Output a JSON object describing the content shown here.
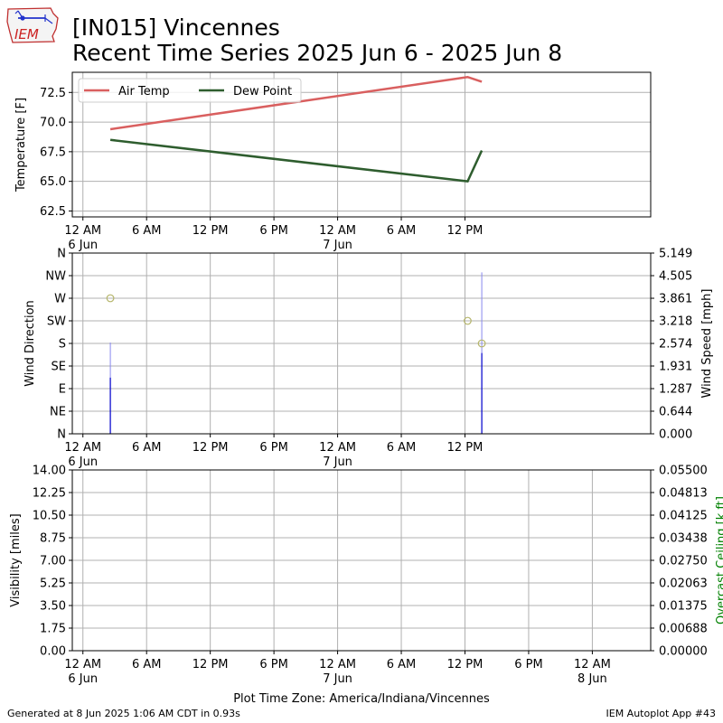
{
  "header": {
    "title_line1": "[IN015] Vincennes",
    "title_line2": "Recent Time Series 2025 Jun 6 - 2025 Jun 8"
  },
  "logo": {
    "text": "IEM"
  },
  "footer": {
    "generated": "Generated at 8 Jun 2025 1:06 AM CDT in 0.93s",
    "app": "IEM Autoplot App #43"
  },
  "colors": {
    "air_temp": "#d95f5f",
    "dew_point": "#2e5d2e",
    "wind_dir": "#b5b56a",
    "wind_speed": "#0000cc",
    "ceiling_axis": "#008000",
    "grid": "#b0b0b0"
  },
  "chart_data": [
    {
      "type": "line",
      "ylabel": "Temperature [F]",
      "ylim": [
        62,
        74.2
      ],
      "yticks": [
        "62.5",
        "65.0",
        "67.5",
        "70.0",
        "72.5"
      ],
      "ytick_values": [
        62.5,
        65.0,
        67.5,
        70.0,
        72.5
      ],
      "xlim_hours": [
        -1,
        53.5
      ],
      "xticks": [
        {
          "h": 0,
          "label": "12 AM",
          "sub": "6 Jun"
        },
        {
          "h": 6,
          "label": "6 AM",
          "sub": ""
        },
        {
          "h": 12,
          "label": "12 PM",
          "sub": ""
        },
        {
          "h": 18,
          "label": "6 PM",
          "sub": ""
        },
        {
          "h": 24,
          "label": "12 AM",
          "sub": "7 Jun"
        },
        {
          "h": 30,
          "label": "6 AM",
          "sub": ""
        },
        {
          "h": 36,
          "label": "12 PM",
          "sub": ""
        }
      ],
      "grid": true,
      "legend_position": "top-left",
      "series": [
        {
          "name": "Air Temp",
          "color_key": "air_temp",
          "points": [
            [
              "2025-06-06 02:35",
              69.4
            ],
            [
              "2025-06-07 12:15",
              73.8
            ],
            [
              "2025-06-07 13:35",
              73.4
            ]
          ]
        },
        {
          "name": "Dew Point",
          "color_key": "dew_point",
          "points": [
            [
              "2025-06-06 02:35",
              68.5
            ],
            [
              "2025-06-07 12:15",
              65.0
            ],
            [
              "2025-06-07 13:35",
              67.6
            ]
          ]
        }
      ]
    },
    {
      "type": "scatter",
      "ylabel": "Wind Direction",
      "ylabel_right": "Wind Speed [mph]",
      "yticks_left": [
        "N",
        "NE",
        "E",
        "SE",
        "S",
        "SW",
        "W",
        "NW",
        "N"
      ],
      "ytick_left_values": [
        0,
        45,
        90,
        135,
        180,
        225,
        270,
        315,
        360
      ],
      "yticks_right": [
        "0.000",
        "0.644",
        "1.287",
        "1.931",
        "2.574",
        "3.218",
        "3.861",
        "4.505",
        "5.149"
      ],
      "ytick_right_values": [
        0,
        0.644,
        1.287,
        1.931,
        2.574,
        3.218,
        3.861,
        4.505,
        5.149
      ],
      "ylim_left": [
        0,
        360
      ],
      "ylim_right": [
        0,
        5.149
      ],
      "xlim_hours": [
        -1,
        53.5
      ],
      "xticks": [
        {
          "h": 0,
          "label": "12 AM",
          "sub": "6 Jun"
        },
        {
          "h": 6,
          "label": "6 AM",
          "sub": ""
        },
        {
          "h": 12,
          "label": "12 PM",
          "sub": ""
        },
        {
          "h": 18,
          "label": "6 PM",
          "sub": ""
        },
        {
          "h": 24,
          "label": "12 AM",
          "sub": "7 Jun"
        },
        {
          "h": 30,
          "label": "6 AM",
          "sub": ""
        },
        {
          "h": 36,
          "label": "12 PM",
          "sub": ""
        }
      ],
      "grid": true,
      "direction_points": [
        [
          "2025-06-06 02:35",
          270
        ],
        [
          "2025-06-07 12:15",
          225
        ],
        [
          "2025-06-07 13:35",
          180
        ]
      ],
      "speed_bars": [
        [
          "2025-06-06 02:35",
          1.6
        ],
        [
          "2025-06-07 13:35",
          2.3
        ]
      ],
      "gust_bars": [
        [
          "2025-06-06 02:35",
          2.6
        ],
        [
          "2025-06-07 13:35",
          4.6
        ]
      ]
    },
    {
      "type": "line",
      "ylabel": "Visibility [miles]",
      "ylabel_right": "Overcast Ceiling [k ft]",
      "yticks_left": [
        "0.00",
        "1.75",
        "3.50",
        "5.25",
        "7.00",
        "8.75",
        "10.50",
        "12.25",
        "14.00"
      ],
      "ytick_left_values": [
        0,
        1.75,
        3.5,
        5.25,
        7.0,
        8.75,
        10.5,
        12.25,
        14.0
      ],
      "yticks_right": [
        "0.00000",
        "0.00688",
        "0.01375",
        "0.02063",
        "0.02750",
        "0.03438",
        "0.04125",
        "0.04813",
        "0.05500"
      ],
      "ytick_right_values": [
        0,
        0.00688,
        0.01375,
        0.02063,
        0.0275,
        0.03438,
        0.04125,
        0.04813,
        0.055
      ],
      "ylim_left": [
        0,
        14
      ],
      "ylim_right": [
        0,
        0.055
      ],
      "xlim_hours": [
        -1,
        53.5
      ],
      "xticks": [
        {
          "h": 0,
          "label": "12 AM",
          "sub": "6 Jun"
        },
        {
          "h": 6,
          "label": "6 AM",
          "sub": ""
        },
        {
          "h": 12,
          "label": "12 PM",
          "sub": ""
        },
        {
          "h": 18,
          "label": "6 PM",
          "sub": ""
        },
        {
          "h": 24,
          "label": "12 AM",
          "sub": "7 Jun"
        },
        {
          "h": 30,
          "label": "6 AM",
          "sub": ""
        },
        {
          "h": 36,
          "label": "12 PM",
          "sub": ""
        },
        {
          "h": 42,
          "label": "6 PM",
          "sub": ""
        },
        {
          "h": 48,
          "label": "12 AM",
          "sub": "8 Jun"
        }
      ],
      "xlabel": "Plot Time Zone: America/Indiana/Vincennes",
      "grid": true,
      "series": []
    }
  ]
}
